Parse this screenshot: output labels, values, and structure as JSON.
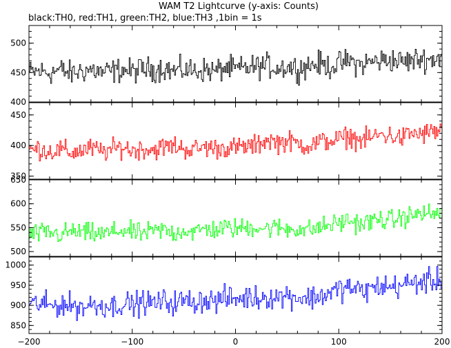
{
  "title": "WAM T2 Lightcurve (y-axis: Counts)",
  "subtitle": "black:TH0, red:TH1, green:TH2, blue:TH3 ,1bin = 1s",
  "chart_data": {
    "type": "line",
    "title": "WAM T2 Lightcurve (y-axis: Counts)",
    "subtitle": "black:TH0, red:TH1, green:TH2, blue:TH3 ,1bin = 1s",
    "xlim": [
      -200,
      200
    ],
    "x_ticks": [
      -200,
      -100,
      0,
      100,
      200
    ],
    "x_tick_labels": [
      "−200",
      "−100",
      "0",
      "100",
      "200"
    ],
    "bin_seconds": 1,
    "grid": false,
    "panels": [
      {
        "name": "TH0",
        "color": "#000000",
        "ylim": [
          400,
          530
        ],
        "y_ticks": [
          400,
          450,
          500
        ],
        "y_tick_labels": [
          "400",
          "450",
          "500"
        ],
        "x": [
          -200,
          -190,
          -180,
          -170,
          -160,
          -150,
          -140,
          -130,
          -120,
          -110,
          -100,
          -90,
          -80,
          -70,
          -60,
          -50,
          -40,
          -30,
          -20,
          -10,
          0,
          10,
          20,
          30,
          40,
          50,
          60,
          70,
          80,
          90,
          100,
          110,
          120,
          130,
          140,
          150,
          160,
          170,
          180,
          190,
          200
        ],
        "values": [
          450,
          452,
          450,
          455,
          448,
          453,
          455,
          450,
          452,
          455,
          452,
          456,
          455,
          458,
          452,
          455,
          453,
          455,
          452,
          458,
          455,
          458,
          460,
          462,
          458,
          460,
          457,
          462,
          465,
          460,
          465,
          470,
          463,
          468,
          470,
          472,
          468,
          470,
          474,
          472,
          478
        ],
        "noise_amplitude": 22
      },
      {
        "name": "TH1",
        "color": "#ff0000",
        "ylim": [
          345,
          470
        ],
        "y_ticks": [
          350,
          400,
          450
        ],
        "y_tick_labels": [
          "350",
          "400",
          "450"
        ],
        "x": [
          -200,
          -190,
          -180,
          -170,
          -160,
          -150,
          -140,
          -130,
          -120,
          -110,
          -100,
          -90,
          -80,
          -70,
          -60,
          -50,
          -40,
          -30,
          -20,
          -10,
          0,
          10,
          20,
          30,
          40,
          50,
          60,
          70,
          80,
          90,
          100,
          110,
          120,
          130,
          140,
          150,
          160,
          170,
          180,
          190,
          200
        ],
        "values": [
          392,
          395,
          390,
          393,
          388,
          392,
          395,
          390,
          393,
          398,
          392,
          395,
          393,
          397,
          400,
          395,
          393,
          398,
          395,
          397,
          396,
          398,
          400,
          410,
          405,
          407,
          403,
          400,
          405,
          408,
          410,
          415,
          408,
          412,
          418,
          416,
          412,
          420,
          418,
          422,
          425
        ],
        "noise_amplitude": 18
      },
      {
        "name": "TH2",
        "color": "#00ff00",
        "ylim": [
          490,
          650
        ],
        "y_ticks": [
          500,
          550,
          600,
          650
        ],
        "y_tick_labels": [
          "500",
          "550",
          "600",
          "650"
        ],
        "x": [
          -200,
          -190,
          -180,
          -170,
          -160,
          -150,
          -140,
          -130,
          -120,
          -110,
          -100,
          -90,
          -80,
          -70,
          -60,
          -50,
          -40,
          -30,
          -20,
          -10,
          0,
          10,
          20,
          30,
          40,
          50,
          60,
          70,
          80,
          90,
          100,
          110,
          120,
          130,
          140,
          150,
          160,
          170,
          180,
          190,
          200
        ],
        "values": [
          535,
          538,
          540,
          535,
          542,
          540,
          538,
          536,
          540,
          545,
          540,
          538,
          542,
          545,
          538,
          545,
          540,
          548,
          545,
          550,
          548,
          550,
          552,
          548,
          550,
          547,
          548,
          545,
          550,
          555,
          560,
          565,
          558,
          562,
          568,
          565,
          570,
          575,
          580,
          578,
          582
        ],
        "noise_amplitude": 22
      },
      {
        "name": "TH3",
        "color": "#0000ff",
        "ylim": [
          830,
          1020
        ],
        "y_ticks": [
          850,
          900,
          950,
          1000
        ],
        "y_tick_labels": [
          "850",
          "900",
          "950",
          "1000"
        ],
        "x": [
          -200,
          -190,
          -180,
          -170,
          -160,
          -150,
          -140,
          -130,
          -120,
          -110,
          -100,
          -90,
          -80,
          -70,
          -60,
          -50,
          -40,
          -30,
          -20,
          -10,
          0,
          10,
          20,
          30,
          40,
          50,
          60,
          70,
          80,
          90,
          100,
          110,
          120,
          130,
          140,
          150,
          160,
          170,
          180,
          190,
          200
        ],
        "values": [
          900,
          905,
          898,
          903,
          900,
          895,
          902,
          900,
          898,
          905,
          902,
          908,
          905,
          910,
          906,
          912,
          908,
          915,
          910,
          918,
          915,
          920,
          918,
          922,
          920,
          925,
          920,
          918,
          922,
          930,
          940,
          945,
          935,
          940,
          948,
          945,
          950,
          955,
          958,
          960,
          965
        ],
        "noise_amplitude": 32
      }
    ]
  }
}
